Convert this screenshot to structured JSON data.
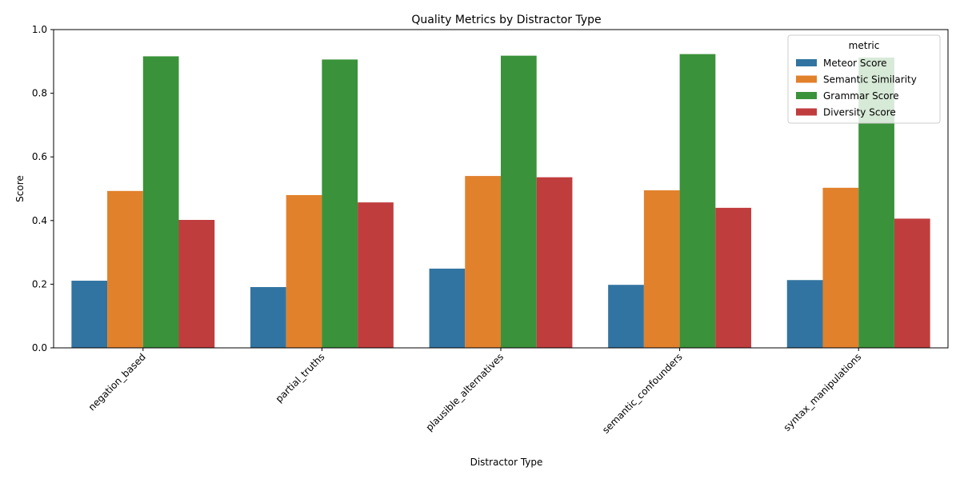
{
  "chart_data": {
    "type": "bar",
    "title": "Quality Metrics by Distractor Type",
    "xlabel": "Distractor Type",
    "ylabel": "Score",
    "ylim": [
      0,
      1.0
    ],
    "yticks": [
      "0.0",
      "0.2",
      "0.4",
      "0.6",
      "0.8",
      "1.0"
    ],
    "grid": false,
    "legend": {
      "title": "metric",
      "placement": "top-right"
    },
    "categories": [
      "negation_based",
      "partial_truths",
      "plausible_alternatives",
      "semantic_confounders",
      "syntax_manipulations"
    ],
    "series": [
      {
        "name": "Meteor Score",
        "color": "#3274a1",
        "values": [
          0.211,
          0.191,
          0.249,
          0.198,
          0.213
        ]
      },
      {
        "name": "Semantic Similarity",
        "color": "#e1812c",
        "values": [
          0.493,
          0.48,
          0.54,
          0.495,
          0.503
        ]
      },
      {
        "name": "Grammar Score",
        "color": "#3a923a",
        "values": [
          0.916,
          0.906,
          0.918,
          0.923,
          0.912
        ]
      },
      {
        "name": "Diversity Score",
        "color": "#c03d3e",
        "values": [
          0.402,
          0.457,
          0.536,
          0.44,
          0.406
        ]
      }
    ]
  }
}
